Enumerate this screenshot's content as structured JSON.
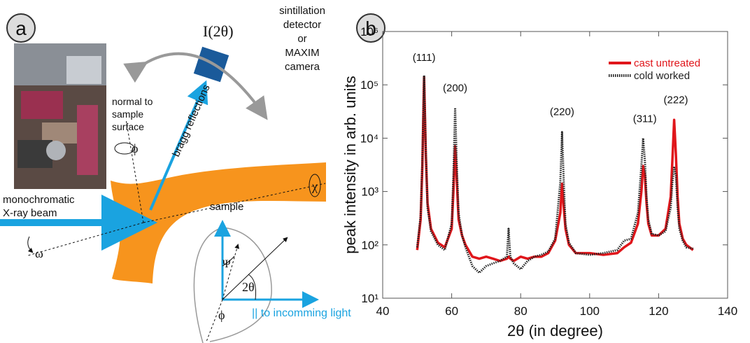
{
  "diagram": {
    "panel_label": "a",
    "detector_symbol": "I(2θ)",
    "detector_text": [
      "sintillation",
      "detector",
      "or",
      "MAXIM",
      "camera"
    ],
    "normal_text": [
      "normal to",
      "sample",
      "surface"
    ],
    "phi_top": "ϕ",
    "bragg": "bragg reflections",
    "chi": "χ",
    "beam_text": [
      "monochromatic",
      "X-ray beam"
    ],
    "sample": "sample",
    "omega": "ω",
    "psi": "Ψ",
    "two_theta": "2θ",
    "phi_bottom": "ϕ",
    "incoming": "|| to incomming light"
  },
  "chart_data": {
    "type": "line",
    "panel_label": "b",
    "x_label": "2θ (in degree)",
    "y_label": "peak intensity in arb. units",
    "log_y": true,
    "xlim": [
      40,
      140
    ],
    "xticks": [
      40,
      60,
      80,
      100,
      120,
      140
    ],
    "ylim": [
      10,
      1000000
    ],
    "yticks": [
      {
        "value": 10,
        "label": "10¹"
      },
      {
        "value": 100,
        "label": "10²"
      },
      {
        "value": 1000,
        "label": "10³"
      },
      {
        "value": 10000,
        "label": "10⁴"
      },
      {
        "value": 100000,
        "label": "10⁵"
      },
      {
        "value": 1000000,
        "label": "10⁶"
      }
    ],
    "legend_position": "upper right",
    "x": [
      50,
      51,
      51.5,
      52,
      52.5,
      53,
      54,
      56,
      58,
      60,
      60.5,
      61,
      61.5,
      62,
      63,
      64,
      66,
      68,
      70,
      72,
      74,
      76,
      76.5,
      77,
      78,
      80,
      82,
      84,
      86,
      88,
      90,
      91.5,
      92,
      92.5,
      93,
      94,
      96,
      100,
      104,
      108,
      110,
      112,
      114,
      115,
      115.5,
      116,
      116.5,
      117,
      118,
      120,
      122,
      123.5,
      124,
      124.5,
      125,
      125.5,
      126,
      127,
      128,
      130
    ],
    "series": [
      {
        "name": "cast untreated",
        "color": "#e0161b",
        "style": "solid",
        "values": [
          80,
          300,
          3000,
          140000,
          5000,
          600,
          200,
          110,
          90,
          200,
          1000,
          7000,
          1500,
          300,
          150,
          100,
          60,
          55,
          60,
          55,
          50,
          55,
          60,
          55,
          50,
          60,
          55,
          60,
          60,
          70,
          120,
          400,
          1400,
          500,
          200,
          100,
          70,
          70,
          65,
          70,
          90,
          110,
          250,
          1000,
          3000,
          2000,
          600,
          250,
          150,
          150,
          200,
          800,
          4000,
          22000,
          5000,
          800,
          250,
          130,
          100,
          80
        ]
      },
      {
        "name": "cold worked",
        "color": "#222222",
        "style": "dotted",
        "values": [
          90,
          350,
          4000,
          150000,
          6000,
          500,
          180,
          100,
          80,
          250,
          2000,
          37000,
          3000,
          400,
          150,
          90,
          40,
          30,
          40,
          45,
          50,
          60,
          200,
          60,
          45,
          35,
          50,
          60,
          65,
          75,
          130,
          1500,
          13000,
          1500,
          250,
          110,
          70,
          65,
          70,
          80,
          120,
          130,
          400,
          3000,
          10000,
          4000,
          800,
          300,
          160,
          150,
          180,
          500,
          1500,
          2800,
          2000,
          500,
          200,
          120,
          90,
          85
        ]
      }
    ],
    "annotations": [
      {
        "text": "(111)",
        "x": 52,
        "y": 280000
      },
      {
        "text": "(200)",
        "x": 61,
        "y": 75000
      },
      {
        "text": "(220)",
        "x": 92,
        "y": 27000
      },
      {
        "text": "(311)",
        "x": 116,
        "y": 20000
      },
      {
        "text": "(222)",
        "x": 125,
        "y": 45000
      }
    ]
  }
}
